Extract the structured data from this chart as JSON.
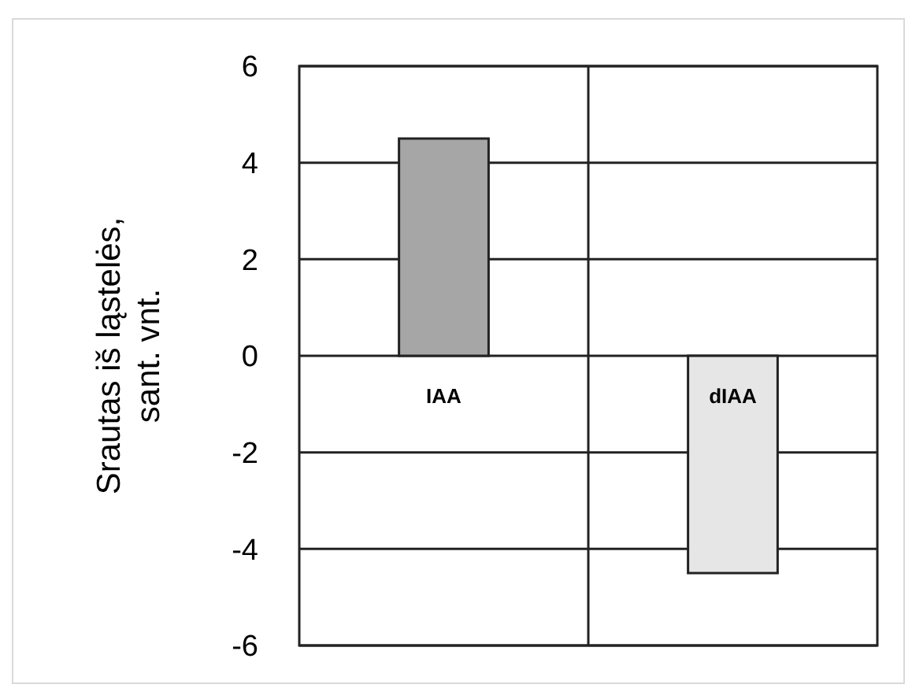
{
  "chart_data": {
    "type": "bar",
    "ylabel": "Srautas iš ląstelės, sant. vnt.",
    "categories": [
      "IAA",
      "dIAA"
    ],
    "values": [
      4.5,
      -4.5
    ],
    "colors": [
      "#a6a6a6",
      "#e6e6e6"
    ],
    "ylim": [
      -6,
      6
    ],
    "yticks": [
      -6,
      -4,
      -2,
      0,
      2,
      4,
      6
    ],
    "grid": true
  }
}
